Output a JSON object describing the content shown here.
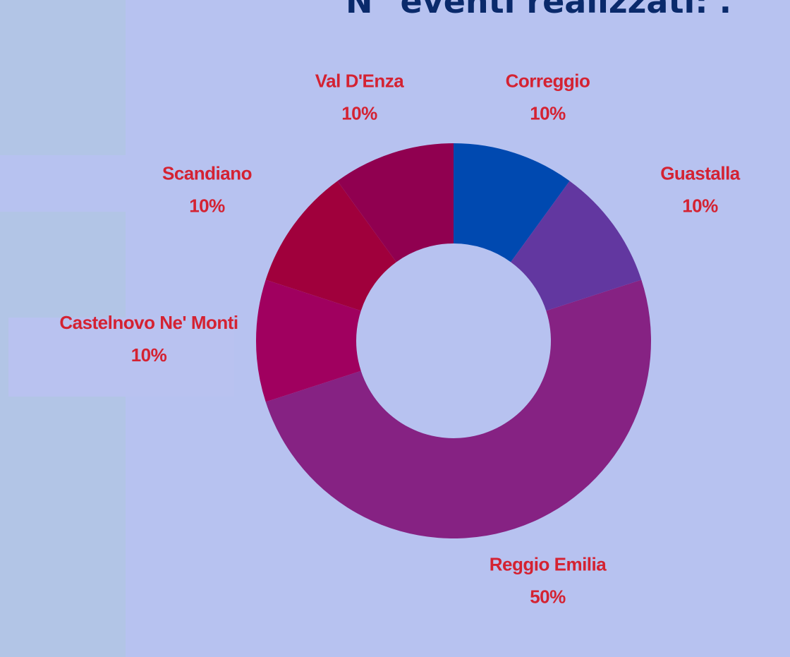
{
  "chart_data": {
    "type": "donut",
    "title": "N° eventi realizzati: .",
    "categories": [
      "Correggio",
      "Guastalla",
      "Reggio Emilia",
      "Castelnovo Ne' Monti",
      "Scandiano",
      "Val D'Enza"
    ],
    "values": [
      10,
      10,
      50,
      10,
      10,
      10
    ],
    "value_labels": [
      "10%",
      "10%",
      "50%",
      "10%",
      "10%",
      "10%"
    ],
    "colors": [
      "#0049b0",
      "#6237a0",
      "#862283",
      "#a0005f",
      "#a0003c",
      "#900050"
    ]
  }
}
